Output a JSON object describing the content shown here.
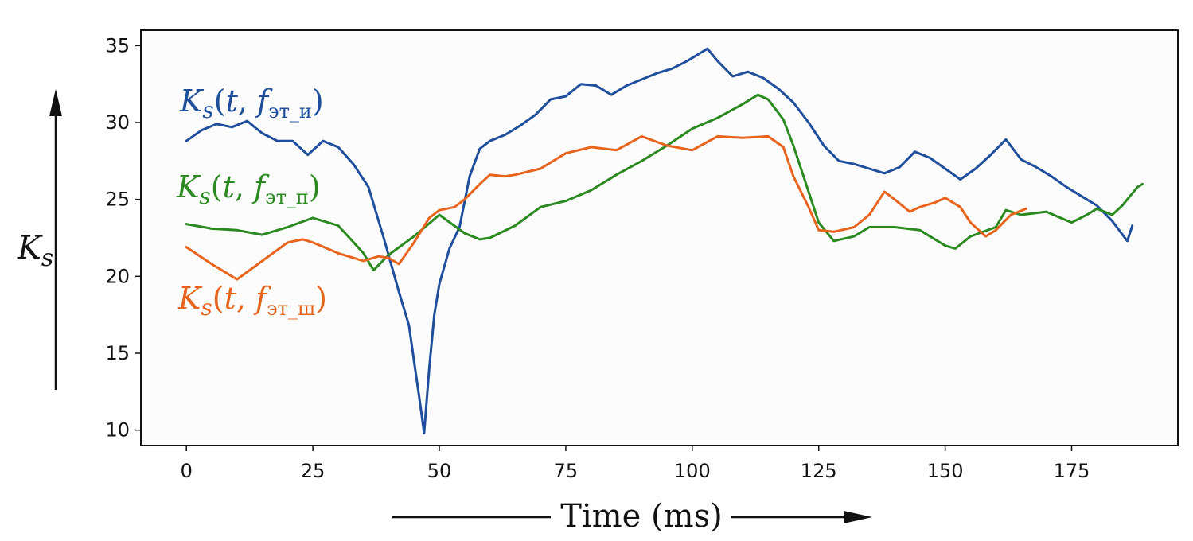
{
  "chart_data": {
    "type": "line",
    "xlabel": "Time (ms)",
    "ylabel": "K_s",
    "xlim": [
      -9,
      196
    ],
    "ylim": [
      9,
      36
    ],
    "xticks": [
      0,
      25,
      50,
      75,
      100,
      125,
      150,
      175
    ],
    "yticks": [
      10,
      15,
      20,
      25,
      30,
      35
    ],
    "grid": false,
    "series": [
      {
        "name": "Ks(t, fэт_и)",
        "color": "#1f4e9c",
        "x": [
          0,
          3,
          6,
          9,
          12,
          15,
          18,
          21,
          24,
          27,
          30,
          33,
          36,
          39,
          42,
          44,
          45,
          46,
          46.5,
          47,
          48,
          49,
          50,
          52,
          54,
          56,
          58,
          60,
          63,
          66,
          69,
          72,
          75,
          78,
          81,
          84,
          87,
          90,
          93,
          96,
          99,
          102,
          103,
          105,
          108,
          111,
          114,
          117,
          120,
          123,
          126,
          129,
          132,
          135,
          138,
          141,
          144,
          147,
          150,
          153,
          156,
          159,
          162,
          165,
          168,
          171,
          174,
          177,
          180,
          183,
          186,
          187
        ],
        "values": [
          28.8,
          29.5,
          29.9,
          29.7,
          30.1,
          29.3,
          28.8,
          28.8,
          27.9,
          28.8,
          28.4,
          27.3,
          25.8,
          22.5,
          19.0,
          16.8,
          14.5,
          12.2,
          11.0,
          9.8,
          14.0,
          17.5,
          19.5,
          21.8,
          23.2,
          26.5,
          28.3,
          28.8,
          29.2,
          29.8,
          30.5,
          31.5,
          31.7,
          32.5,
          32.4,
          31.8,
          32.4,
          32.8,
          33.2,
          33.5,
          34.0,
          34.6,
          34.8,
          34.0,
          33.0,
          33.3,
          32.9,
          32.2,
          31.3,
          30.0,
          28.5,
          27.5,
          27.3,
          27.0,
          26.7,
          27.1,
          28.1,
          27.7,
          27.0,
          26.3,
          27.0,
          27.9,
          28.9,
          27.6,
          27.1,
          26.5,
          25.8,
          25.2,
          24.6,
          23.6,
          22.3,
          23.3
        ]
      },
      {
        "name": "Ks(t, fэт_п)",
        "color": "#2a8a1f",
        "x": [
          0,
          5,
          10,
          15,
          20,
          25,
          30,
          35,
          37,
          40,
          45,
          50,
          55,
          58,
          60,
          65,
          70,
          75,
          80,
          85,
          90,
          95,
          100,
          105,
          110,
          113,
          115,
          118,
          120,
          123,
          125,
          128,
          132,
          135,
          140,
          145,
          150,
          152,
          155,
          160,
          162,
          165,
          170,
          175,
          178,
          180,
          183,
          185,
          188,
          189
        ],
        "values": [
          23.4,
          23.1,
          23.0,
          22.7,
          23.2,
          23.8,
          23.3,
          21.5,
          20.4,
          21.4,
          22.6,
          24.0,
          22.8,
          22.4,
          22.5,
          23.3,
          24.5,
          24.9,
          25.6,
          26.6,
          27.5,
          28.5,
          29.6,
          30.3,
          31.2,
          31.8,
          31.5,
          30.2,
          28.5,
          25.5,
          23.5,
          22.3,
          22.6,
          23.2,
          23.2,
          23.0,
          22.0,
          21.8,
          22.6,
          23.2,
          24.3,
          24.0,
          24.2,
          23.5,
          24.0,
          24.4,
          24.0,
          24.6,
          25.8,
          26.0
        ]
      },
      {
        "name": "Ks(t, fэт_ш)",
        "color": "#e8641c",
        "x": [
          0,
          5,
          10,
          15,
          20,
          23,
          25,
          30,
          35,
          38,
          40,
          42,
          45,
          48,
          50,
          53,
          55,
          58,
          60,
          63,
          65,
          70,
          75,
          80,
          85,
          90,
          95,
          100,
          105,
          110,
          115,
          118,
          120,
          123,
          125,
          128,
          132,
          135,
          138,
          140,
          143,
          145,
          148,
          150,
          153,
          155,
          158,
          160,
          163,
          166
        ],
        "values": [
          21.9,
          20.8,
          19.8,
          21.0,
          22.2,
          22.4,
          22.2,
          21.5,
          21.0,
          21.3,
          21.2,
          20.8,
          22.2,
          23.8,
          24.3,
          24.5,
          25.0,
          26.0,
          26.6,
          26.5,
          26.6,
          27.0,
          28.0,
          28.4,
          28.2,
          29.1,
          28.5,
          28.2,
          29.1,
          29.0,
          29.1,
          28.4,
          26.5,
          24.5,
          23.0,
          22.9,
          23.2,
          24.0,
          25.5,
          25.0,
          24.2,
          24.5,
          24.8,
          25.1,
          24.5,
          23.5,
          22.6,
          23.0,
          24.0,
          24.4
        ]
      }
    ]
  }
}
